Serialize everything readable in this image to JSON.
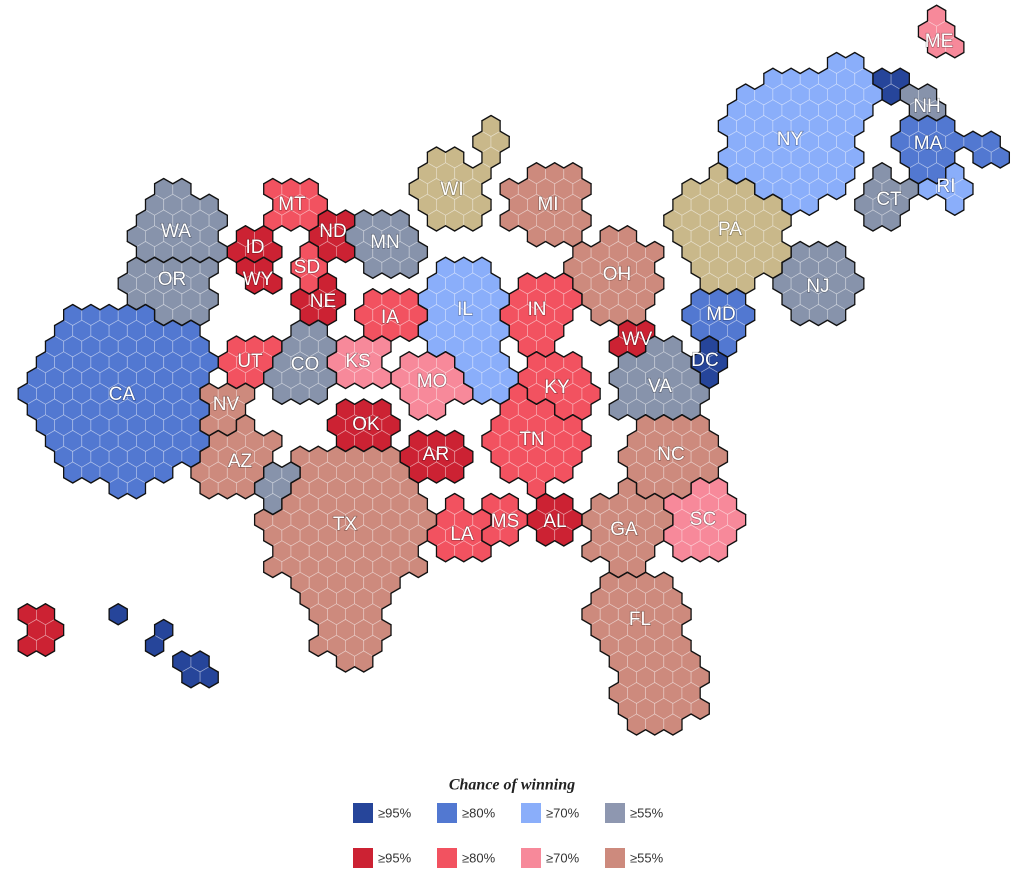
{
  "map": {
    "legend": {
      "title": "Chance of winning",
      "items": [
        {
          "label": "≥95%",
          "color": "#26459a"
        },
        {
          "label": "≥80%",
          "color": "#5278d1"
        },
        {
          "label": "≥70%",
          "color": "#8aaefa"
        },
        {
          "label": "≥55%",
          "color": "#8e97b0"
        },
        {
          "label": "≥95%",
          "color": "#cc2233"
        },
        {
          "label": "≥80%",
          "color": "#f25260"
        },
        {
          "label": "≥70%",
          "color": "#f7899a"
        },
        {
          "label": "≥55%",
          "color": "#cd8a7d"
        }
      ]
    },
    "states": [
      {
        "label": "WA",
        "color": "#8793ab"
      },
      {
        "label": "OR",
        "color": "#8793ab"
      },
      {
        "label": "CA",
        "color": "#5278d1"
      },
      {
        "label": "NV",
        "color": "#cd8a7d"
      },
      {
        "label": "ID",
        "color": "#cc2233"
      },
      {
        "label": "MT",
        "color": "#f25260"
      },
      {
        "label": "WY",
        "color": "#cc2233"
      },
      {
        "label": "UT",
        "color": "#f25260"
      },
      {
        "label": "AZ",
        "color": "#cd8a7d"
      },
      {
        "label": "CO",
        "color": "#8793ab"
      },
      {
        "label": null,
        "color": "#8793ab"
      },
      {
        "label": "ND",
        "color": "#cc2233"
      },
      {
        "label": "SD",
        "color": "#f25260"
      },
      {
        "label": "NE",
        "color": "#cc2233"
      },
      {
        "label": "KS",
        "color": "#f7899a"
      },
      {
        "label": "OK",
        "color": "#cc2233"
      },
      {
        "label": "TX",
        "color": "#cd8a7d"
      },
      {
        "label": "MN",
        "color": "#8793ab"
      },
      {
        "label": "IA",
        "color": "#f25260"
      },
      {
        "label": "MO",
        "color": "#f7899a"
      },
      {
        "label": "AR",
        "color": "#cc2233"
      },
      {
        "label": "LA",
        "color": "#f25260"
      },
      {
        "label": "WI",
        "color": "#c9b88a"
      },
      {
        "label": "IL",
        "color": "#8aaefa"
      },
      {
        "label": "MI",
        "color": "#cd8a7d"
      },
      {
        "label": "IN",
        "color": "#f25260"
      },
      {
        "label": "KY",
        "color": "#f25260"
      },
      {
        "label": "TN",
        "color": "#f25260"
      },
      {
        "label": "MS",
        "color": "#f25260"
      },
      {
        "label": "AL",
        "color": "#cc2233"
      },
      {
        "label": "OH",
        "color": "#cd8a7d"
      },
      {
        "label": "WV",
        "color": "#cc2233"
      },
      {
        "label": "VA",
        "color": "#8793ab"
      },
      {
        "label": "NC",
        "color": "#cd8a7d"
      },
      {
        "label": "SC",
        "color": "#f7899a"
      },
      {
        "label": "GA",
        "color": "#cd8a7d"
      },
      {
        "label": "FL",
        "color": "#cd8a7d"
      },
      {
        "label": "PA",
        "color": "#c9b88a"
      },
      {
        "label": "NY",
        "color": "#8aaefa"
      },
      {
        "label": "NJ",
        "color": "#8793ab"
      },
      {
        "label": "MD",
        "color": "#5278d1"
      },
      {
        "label": "DC",
        "color": "#26459a"
      },
      {
        "label": "CT",
        "color": "#8793ab"
      },
      {
        "label": "RI",
        "color": "#8aaefa"
      },
      {
        "label": "MA",
        "color": "#5278d1"
      },
      {
        "label": "NH",
        "color": "#8793ab"
      },
      {
        "label": "ME",
        "color": "#f7899a"
      },
      {
        "label": null,
        "color": "#26459a"
      },
      {
        "label": null,
        "color": "#cc2233"
      },
      {
        "label": null,
        "color": "#26459a"
      }
    ]
  }
}
